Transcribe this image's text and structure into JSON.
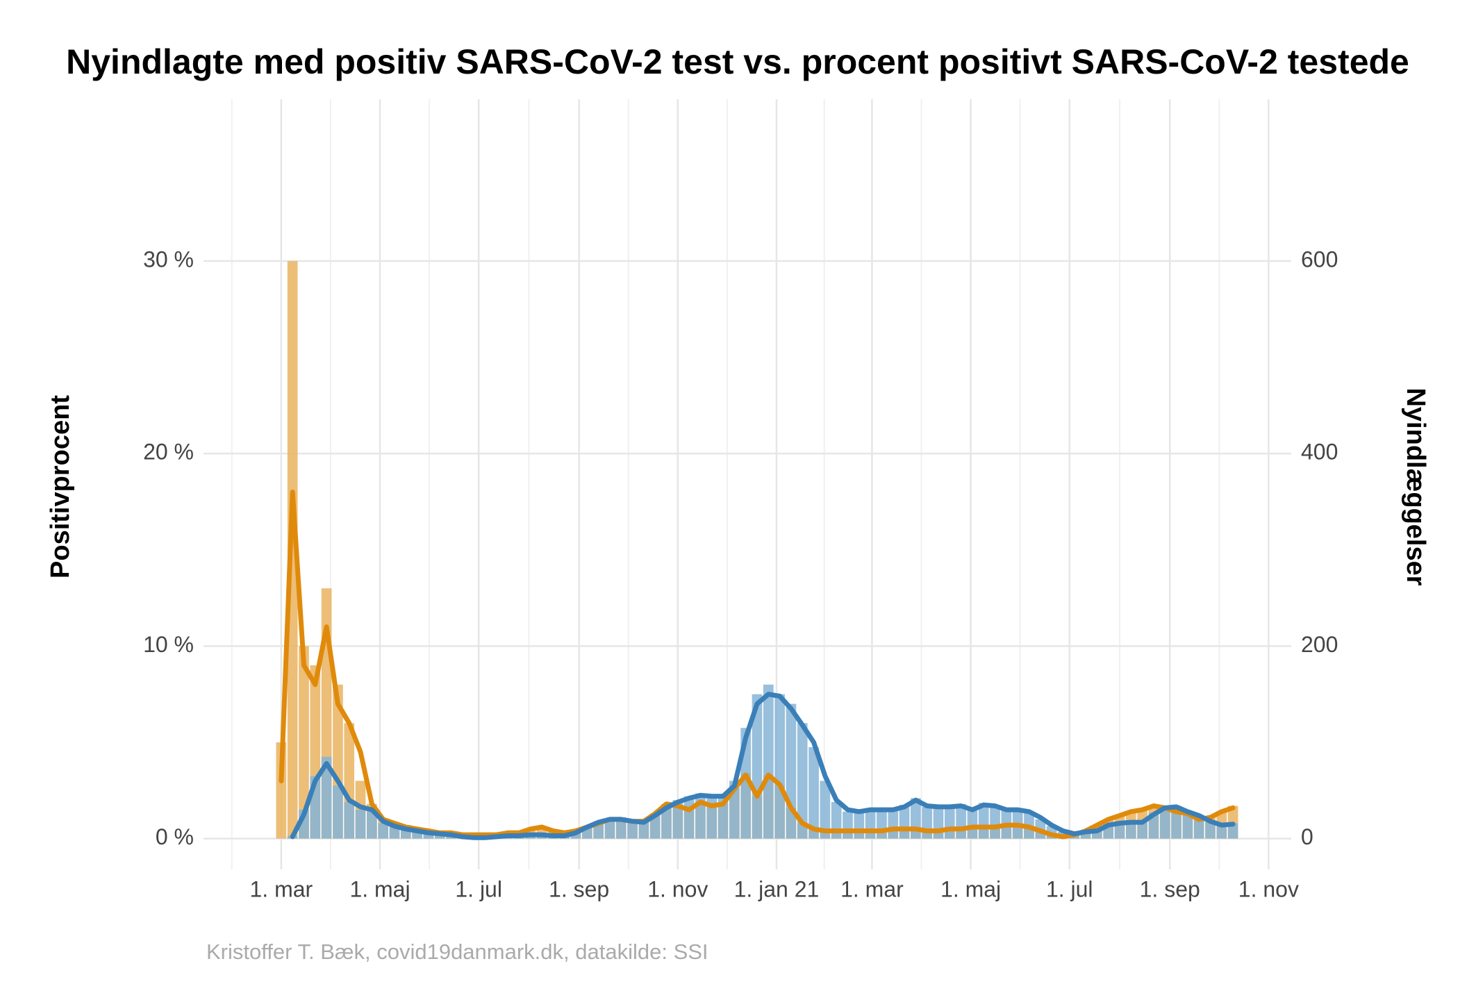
{
  "chart_data": {
    "type": "combo",
    "title": "Nyindlagte med positiv SARS-CoV-2 test vs. procent positivt SARS-CoV-2 testede",
    "y_label": "Positivprocent",
    "y2_label": "Nyindlæggelser",
    "caption": "Kristoffer T. Bæk, covid19danmark.dk, datakilde: SSI",
    "grid": true,
    "xlim": [
      -48,
      624
    ],
    "xticks": [
      {
        "value": 0,
        "label": "1. mar"
      },
      {
        "value": 61,
        "label": "1. maj"
      },
      {
        "value": 122,
        "label": "1. jul"
      },
      {
        "value": 184,
        "label": "1. sep"
      },
      {
        "value": 245,
        "label": "1. nov"
      },
      {
        "value": 306,
        "label": "1. jan 21"
      },
      {
        "value": 365,
        "label": "1. mar"
      },
      {
        "value": 426,
        "label": "1. maj"
      },
      {
        "value": 487,
        "label": "1. jul"
      },
      {
        "value": 549,
        "label": "1. sep"
      },
      {
        "value": 610,
        "label": "1. nov"
      }
    ],
    "ylim": [
      -1.6,
      38.4
    ],
    "yticks": [
      {
        "value": 0,
        "label": "0 %"
      },
      {
        "value": 10,
        "label": "10 %"
      },
      {
        "value": 20,
        "label": "20 %"
      },
      {
        "value": 30,
        "label": "30 %"
      }
    ],
    "y2lim": [
      -32,
      768
    ],
    "y2ticks": [
      0,
      200,
      400,
      600
    ],
    "x": [
      0,
      7,
      14,
      21,
      28,
      35,
      42,
      49,
      56,
      63,
      70,
      77,
      84,
      91,
      98,
      105,
      112,
      119,
      126,
      133,
      140,
      147,
      154,
      161,
      168,
      175,
      182,
      189,
      196,
      203,
      210,
      217,
      224,
      231,
      238,
      245,
      252,
      259,
      266,
      273,
      280,
      287,
      294,
      301,
      308,
      315,
      322,
      329,
      336,
      343,
      350,
      357,
      364,
      371,
      378,
      385,
      392,
      399,
      406,
      413,
      420,
      427,
      434,
      441,
      448,
      455,
      462,
      469,
      476,
      483,
      490,
      497,
      504,
      511,
      518,
      525,
      532,
      539,
      546,
      553,
      560,
      567,
      574,
      581,
      588
    ],
    "series": [
      {
        "type": "bar",
        "axis": "y",
        "color": "#e9b35f",
        "values": [
          5,
          30,
          10,
          9,
          13,
          8,
          6,
          3,
          1.8,
          1.0,
          0.8,
          0.7,
          0.5,
          0.4,
          0.3,
          0.3,
          0.2,
          0.2,
          0.2,
          0.2,
          0.3,
          0.3,
          0.5,
          0.6,
          0.4,
          0.3,
          0.4,
          0.6,
          0.8,
          1.0,
          1.1,
          0.9,
          0.9,
          1.3,
          1.8,
          1.7,
          1.5,
          1.9,
          1.7,
          1.8,
          2.6,
          3.4,
          2.2,
          3.3,
          2.8,
          1.6,
          0.8,
          0.5,
          0.4,
          0.4,
          0.4,
          0.4,
          0.4,
          0.4,
          0.5,
          0.5,
          0.5,
          0.4,
          0.4,
          0.5,
          0.5,
          0.6,
          0.6,
          0.6,
          0.7,
          0.7,
          0.6,
          0.4,
          0.2,
          0.1,
          0.2,
          0.4,
          0.7,
          1.0,
          1.2,
          1.4,
          1.5,
          1.7,
          1.6,
          1.4,
          1.3,
          1.0,
          1.1,
          1.4,
          1.7
        ]
      },
      {
        "type": "bar",
        "axis": "y2",
        "color": "#86b4d6",
        "values": [
          null,
          3,
          30,
          65,
          85,
          55,
          38,
          30,
          28,
          16,
          12,
          9,
          7,
          6,
          4,
          3,
          2,
          1,
          1,
          2,
          3,
          4,
          4,
          5,
          3,
          3,
          7,
          13,
          18,
          21,
          22,
          19,
          18,
          26,
          35,
          40,
          44,
          47,
          45,
          46,
          60,
          115,
          150,
          160,
          150,
          140,
          120,
          95,
          60,
          38,
          28,
          27,
          31,
          29,
          31,
          35,
          42,
          33,
          34,
          32,
          36,
          29,
          37,
          33,
          31,
          29,
          27,
          20,
          13,
          7,
          5,
          8,
          9,
          15,
          17,
          18,
          18,
          27,
          34,
          34,
          29,
          23,
          17,
          13,
          16
        ]
      },
      {
        "type": "line",
        "axis": "y",
        "color": "#e08a0b",
        "values": [
          3,
          18,
          9,
          8,
          11,
          7,
          6,
          4.5,
          1.8,
          1.0,
          0.8,
          0.6,
          0.5,
          0.4,
          0.3,
          0.3,
          0.2,
          0.2,
          0.2,
          0.2,
          0.3,
          0.3,
          0.5,
          0.6,
          0.4,
          0.3,
          0.4,
          0.6,
          0.8,
          1.0,
          1.0,
          0.9,
          0.9,
          1.3,
          1.8,
          1.7,
          1.5,
          1.9,
          1.7,
          1.8,
          2.6,
          3.3,
          2.2,
          3.3,
          2.8,
          1.6,
          0.8,
          0.5,
          0.4,
          0.4,
          0.4,
          0.4,
          0.4,
          0.4,
          0.5,
          0.5,
          0.5,
          0.4,
          0.4,
          0.5,
          0.5,
          0.6,
          0.6,
          0.6,
          0.7,
          0.7,
          0.6,
          0.4,
          0.2,
          0.1,
          0.2,
          0.4,
          0.7,
          1.0,
          1.2,
          1.4,
          1.5,
          1.7,
          1.6,
          1.4,
          1.3,
          1.0,
          1.1,
          1.4,
          1.6
        ]
      },
      {
        "type": "line",
        "axis": "y2",
        "color": "#3a7fb8",
        "values": [
          null,
          2,
          25,
          60,
          78,
          60,
          40,
          33,
          30,
          18,
          13,
          10,
          8,
          6,
          5,
          4,
          2,
          1,
          1,
          2,
          3,
          3,
          4,
          4,
          3,
          3,
          6,
          12,
          17,
          20,
          20,
          18,
          17,
          24,
          32,
          38,
          42,
          45,
          44,
          44,
          55,
          105,
          140,
          150,
          148,
          135,
          118,
          100,
          65,
          40,
          30,
          28,
          30,
          30,
          30,
          33,
          40,
          34,
          33,
          33,
          34,
          30,
          35,
          34,
          30,
          30,
          28,
          22,
          14,
          8,
          5,
          7,
          8,
          14,
          16,
          17,
          17,
          25,
          32,
          33,
          28,
          24,
          18,
          14,
          15
        ]
      }
    ]
  }
}
